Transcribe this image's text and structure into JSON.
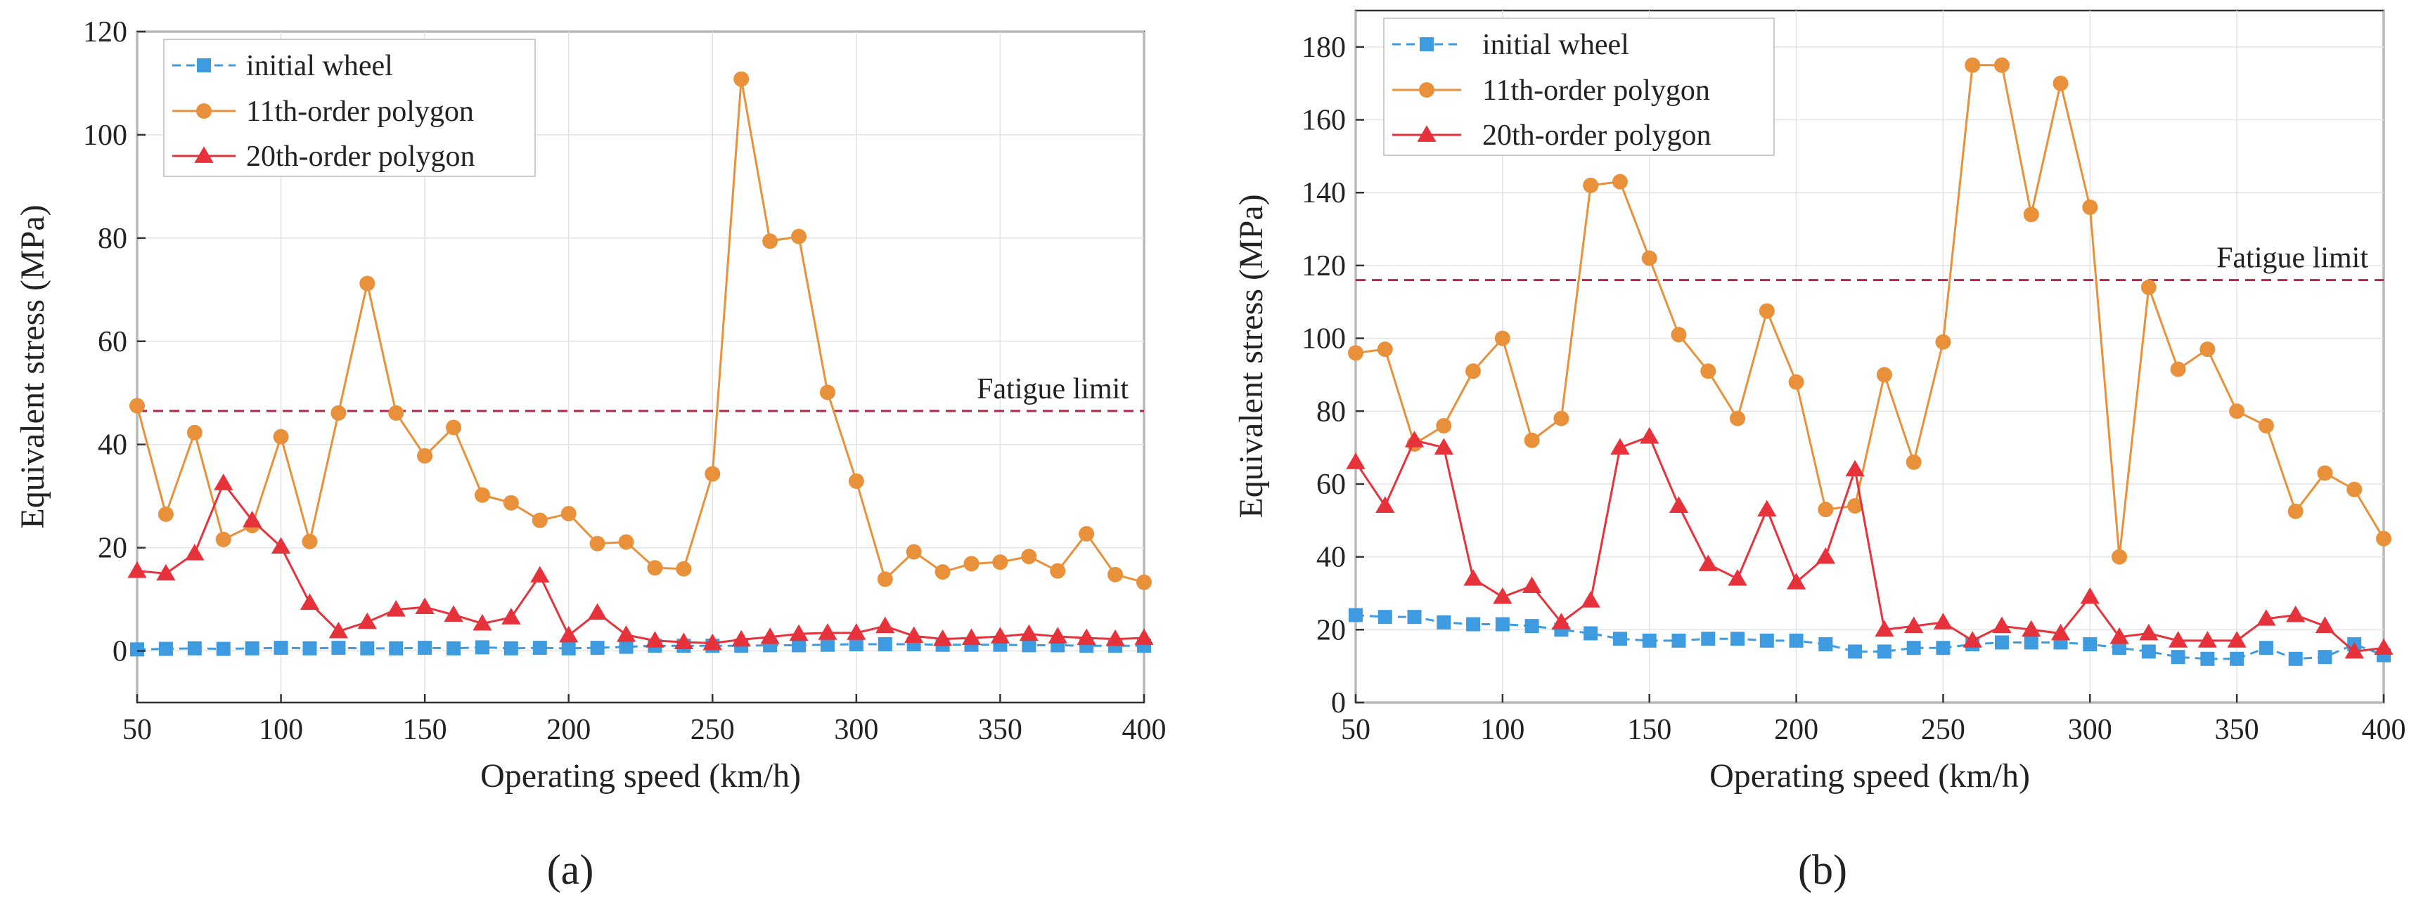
{
  "chart_data": [
    {
      "type": "line",
      "panel_label": "(a)",
      "xlabel": "Operating speed (km/h)",
      "ylabel": "Equivalent stress (MPa)",
      "xlim": [
        50,
        400
      ],
      "ylim": [
        -10,
        120
      ],
      "xticks": [
        50,
        100,
        150,
        200,
        250,
        300,
        350,
        400
      ],
      "yticks": [
        0,
        20,
        40,
        60,
        80,
        100,
        120
      ],
      "grid": true,
      "legend_position": "top-left",
      "reference_line": {
        "label": "Fatigue limit",
        "value": 46.5,
        "color": "#b0274a"
      },
      "x": [
        50,
        60,
        70,
        80,
        90,
        100,
        110,
        120,
        130,
        140,
        150,
        160,
        170,
        180,
        190,
        200,
        210,
        220,
        230,
        240,
        250,
        260,
        270,
        280,
        290,
        300,
        310,
        320,
        330,
        340,
        350,
        360,
        370,
        380,
        390,
        400
      ],
      "series": [
        {
          "name": "initial wheel",
          "marker": "square",
          "color": "#3e9be0",
          "values": [
            0.3,
            0.4,
            0.5,
            0.4,
            0.5,
            0.6,
            0.5,
            0.6,
            0.5,
            0.5,
            0.6,
            0.5,
            0.7,
            0.5,
            0.6,
            0.5,
            0.6,
            0.8,
            1.0,
            1.0,
            1.0,
            1.0,
            1.1,
            1.1,
            1.2,
            1.3,
            1.3,
            1.3,
            1.2,
            1.2,
            1.2,
            1.1,
            1.1,
            1.0,
            1.0,
            1.0
          ]
        },
        {
          "name": "11th-order polygon",
          "marker": "circle",
          "color": "#e8913a",
          "values": [
            47.5,
            26.5,
            42.3,
            21.6,
            24.3,
            41.5,
            21.2,
            46.1,
            71.2,
            46.1,
            37.8,
            43.3,
            30.2,
            28.7,
            25.3,
            26.6,
            20.8,
            21.1,
            16.1,
            15.9,
            34.3,
            110.8,
            79.4,
            80.3,
            50.1,
            32.9,
            13.9,
            19.2,
            15.3,
            16.9,
            17.2,
            18.3,
            15.5,
            22.7,
            14.8,
            13.3
          ]
        },
        {
          "name": "20th-order polygon",
          "marker": "triangle",
          "color": "#e5323b",
          "values": [
            15.5,
            15.0,
            18.9,
            32.5,
            25.3,
            20.2,
            9.3,
            3.8,
            5.6,
            8.0,
            8.5,
            7.0,
            5.3,
            6.5,
            14.6,
            3.0,
            7.4,
            3.1,
            2.0,
            1.7,
            1.5,
            2.2,
            2.7,
            3.3,
            3.5,
            3.5,
            4.8,
            2.9,
            2.3,
            2.5,
            2.8,
            3.3,
            2.8,
            2.5,
            2.3,
            2.5
          ]
        }
      ]
    },
    {
      "type": "line",
      "panel_label": "(b)",
      "xlabel": "Operating speed (km/h)",
      "ylabel": "Equivalent stress (MPa)",
      "xlim": [
        50,
        400
      ],
      "ylim": [
        0,
        190
      ],
      "xticks": [
        50,
        100,
        150,
        200,
        250,
        300,
        350,
        400
      ],
      "yticks": [
        0,
        20,
        40,
        60,
        80,
        100,
        120,
        140,
        160,
        180
      ],
      "grid": true,
      "legend_position": "top-left",
      "reference_line": {
        "label": "Fatigue limit",
        "value": 116,
        "color": "#b0274a"
      },
      "x": [
        50,
        60,
        70,
        80,
        90,
        100,
        110,
        120,
        130,
        140,
        150,
        160,
        170,
        180,
        190,
        200,
        210,
        220,
        230,
        240,
        250,
        260,
        270,
        280,
        290,
        300,
        310,
        320,
        330,
        340,
        350,
        360,
        370,
        380,
        390,
        400
      ],
      "series": [
        {
          "name": "initial wheel",
          "marker": "square",
          "color": "#3e9be0",
          "values": [
            24,
            23.5,
            23.5,
            22,
            21.5,
            21.5,
            21,
            20,
            19,
            17.5,
            17,
            17,
            17.5,
            17.5,
            17,
            17,
            16,
            14,
            14,
            15,
            15,
            16,
            16.5,
            16.5,
            16.5,
            16,
            15,
            14,
            12.5,
            12,
            12,
            15,
            12,
            12.5,
            16,
            13
          ]
        },
        {
          "name": "11th-order polygon",
          "marker": "circle",
          "color": "#e8913a",
          "values": [
            96,
            97,
            71,
            76,
            91,
            100,
            72,
            78,
            142,
            143,
            122,
            101,
            91,
            78,
            107.5,
            88,
            53,
            54,
            90,
            66,
            99,
            175,
            175,
            134,
            170,
            136,
            40,
            114,
            91.5,
            97,
            80,
            76,
            52.5,
            63,
            58.5,
            45
          ]
        },
        {
          "name": "20th-order polygon",
          "marker": "triangle",
          "color": "#e5323b",
          "values": [
            66,
            54,
            72,
            70,
            34,
            29,
            32,
            22,
            28,
            70,
            73,
            54,
            38,
            34,
            53,
            33,
            40,
            64,
            20,
            21,
            22,
            17,
            21,
            20,
            19,
            29,
            18,
            19,
            17,
            17,
            17,
            23,
            24,
            21,
            14,
            15
          ]
        }
      ]
    }
  ]
}
